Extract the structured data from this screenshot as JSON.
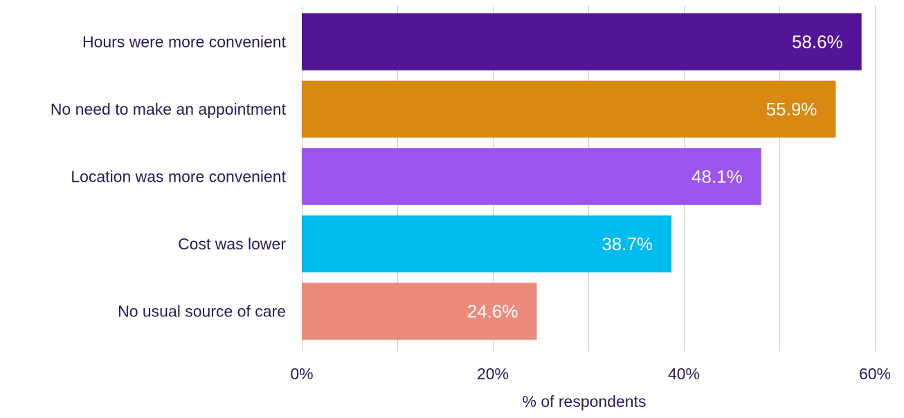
{
  "chart_data": {
    "type": "bar",
    "orientation": "horizontal",
    "categories": [
      "Hours were more convenient",
      "No need to make an appointment",
      "Location was more convenient",
      "Cost was lower",
      "No usual source of care"
    ],
    "values": [
      58.6,
      55.9,
      48.1,
      38.7,
      24.6
    ],
    "data_labels": [
      "58.6%",
      "55.9%",
      "48.1%",
      "38.7%",
      "24.6%"
    ],
    "colors": [
      "#531497",
      "#d88912",
      "#9b55ec",
      "#00bbed",
      "#eb8b7b"
    ],
    "xlabel": "% of respondents",
    "xlim": [
      0,
      60
    ],
    "x_ticks": [
      0,
      20,
      40,
      60
    ],
    "x_tick_labels": [
      "0%",
      "20%",
      "40%",
      "60%"
    ],
    "grid": true,
    "legend": "none"
  }
}
